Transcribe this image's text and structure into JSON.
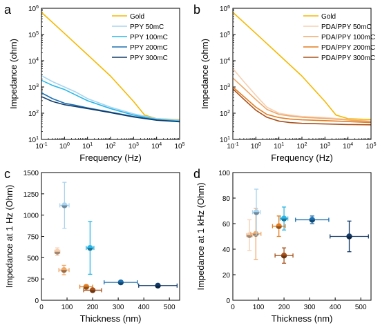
{
  "chart_data": [
    {
      "panel": "a",
      "type": "line",
      "xscale": "log",
      "yscale": "log",
      "xlim": [
        0.1,
        100000
      ],
      "ylim": [
        10,
        1000000
      ],
      "xlabel": "Frequency (Hz)",
      "ylabel": "Impedance (ohm)",
      "legend_position": "top-right",
      "xticks": [
        "10^-1",
        "10^0",
        "10^1",
        "10^2",
        "10^3",
        "10^4",
        "10^5"
      ],
      "yticks": [
        "10^1",
        "10^2",
        "10^3",
        "10^4",
        "10^5",
        "10^6"
      ],
      "series": [
        {
          "name": "Gold",
          "color": "#f5b800",
          "x": [
            0.1,
            1,
            10,
            100,
            1000,
            3000,
            10000,
            100000
          ],
          "y": [
            700000,
            110000,
            17000,
            2600,
            280,
            85,
            62,
            57
          ]
        },
        {
          "name": "PPY 50mC",
          "color": "#a8d4f0",
          "x": [
            0.1,
            0.3,
            1,
            3,
            10,
            100,
            1000,
            10000,
            100000
          ],
          "y": [
            2700,
            1600,
            1000,
            650,
            360,
            170,
            95,
            62,
            55
          ]
        },
        {
          "name": "PPY 100mC",
          "color": "#29b6e8",
          "x": [
            0.1,
            0.3,
            1,
            3,
            10,
            100,
            1000,
            10000,
            100000
          ],
          "y": [
            1800,
            1150,
            800,
            500,
            300,
            150,
            85,
            58,
            50
          ]
        },
        {
          "name": "PPY 200mC",
          "color": "#1a6fb0",
          "x": [
            0.1,
            0.3,
            1,
            3,
            10,
            100,
            1000,
            10000,
            100000
          ],
          "y": [
            600,
            360,
            240,
            200,
            160,
            110,
            75,
            55,
            48
          ]
        },
        {
          "name": "PPY 300mC",
          "color": "#123a68",
          "x": [
            0.1,
            0.3,
            1,
            3,
            10,
            100,
            1000,
            10000,
            100000
          ],
          "y": [
            430,
            280,
            210,
            180,
            150,
            105,
            72,
            54,
            47
          ]
        }
      ]
    },
    {
      "panel": "b",
      "type": "line",
      "xscale": "log",
      "yscale": "log",
      "xlim": [
        0.1,
        100000
      ],
      "ylim": [
        10,
        1000000
      ],
      "xlabel": "Frequency (Hz)",
      "ylabel": "Impedance (ohm)",
      "legend_position": "top-right",
      "xticks": [
        "10^-1",
        "10^0",
        "10^1",
        "10^2",
        "10^3",
        "10^4",
        "10^5"
      ],
      "yticks": [
        "10^1",
        "10^2",
        "10^3",
        "10^4",
        "10^5",
        "10^6"
      ],
      "series": [
        {
          "name": "Gold",
          "color": "#f5b800",
          "x": [
            0.1,
            1,
            10,
            100,
            1000,
            3000,
            10000,
            100000
          ],
          "y": [
            700000,
            110000,
            17000,
            2600,
            280,
            85,
            62,
            57
          ]
        },
        {
          "name": "PDA/PPY 50mC",
          "color": "#f6cfb0",
          "x": [
            0.1,
            0.3,
            1,
            3,
            10,
            30,
            100,
            1000,
            10000,
            100000
          ],
          "y": [
            5000,
            1600,
            480,
            170,
            100,
            85,
            75,
            68,
            58,
            50
          ]
        },
        {
          "name": "PDA/PPY 100mC",
          "color": "#eea86a",
          "x": [
            0.1,
            0.3,
            1,
            3,
            10,
            30,
            100,
            1000,
            10000,
            100000
          ],
          "y": [
            2200,
            900,
            330,
            140,
            90,
            78,
            70,
            63,
            55,
            48
          ]
        },
        {
          "name": "PDA/PPY 200mC",
          "color": "#e37c1f",
          "x": [
            0.1,
            0.3,
            1,
            3,
            10,
            30,
            100,
            1000,
            10000,
            100000
          ],
          "y": [
            1000,
            430,
            170,
            90,
            68,
            60,
            56,
            52,
            48,
            44
          ]
        },
        {
          "name": "PDA/PPY 300mC",
          "color": "#a8501a",
          "x": [
            0.1,
            0.3,
            1,
            3,
            10,
            30,
            100,
            1000,
            10000,
            100000
          ],
          "y": [
            850,
            340,
            130,
            70,
            50,
            44,
            41,
            39,
            37,
            36
          ]
        }
      ]
    },
    {
      "panel": "c",
      "type": "scatter",
      "xlim": [
        0,
        540
      ],
      "ylim": [
        0,
        1500
      ],
      "xlabel": "Thickness (nm)",
      "ylabel": "Impedance at 1 Hz (Ohm)",
      "xticks": [
        0,
        100,
        200,
        300,
        400,
        500
      ],
      "yticks": [
        0,
        250,
        500,
        750,
        1000,
        1250,
        1500
      ],
      "points": [
        {
          "x": 62,
          "y": 570,
          "xerr": 10,
          "yerr": 45,
          "color": "#f6cfb0"
        },
        {
          "x": 90,
          "y": 1115,
          "xerr": 18,
          "yerr": 270,
          "color": "#a8d4f0"
        },
        {
          "x": 88,
          "y": 355,
          "xerr": 20,
          "yerr": 55,
          "color": "#eea86a"
        },
        {
          "x": 190,
          "y": 615,
          "xerr": 15,
          "yerr": 310,
          "color": "#29b6e8"
        },
        {
          "x": 175,
          "y": 158,
          "xerr": 25,
          "yerr": 20,
          "color": "#e37c1f"
        },
        {
          "x": 200,
          "y": 118,
          "xerr": 35,
          "yerr": 18,
          "color": "#a8501a"
        },
        {
          "x": 310,
          "y": 210,
          "xerr": 65,
          "yerr": 18,
          "color": "#1a6fb0"
        },
        {
          "x": 455,
          "y": 172,
          "xerr": 75,
          "yerr": 12,
          "color": "#123a68"
        }
      ]
    },
    {
      "panel": "d",
      "type": "scatter",
      "xlim": [
        0,
        540
      ],
      "ylim": [
        0,
        100
      ],
      "xlabel": "Thickness (nm)",
      "ylabel": "Impedance at 1 kHz (Ohm)",
      "xticks": [
        0,
        100,
        200,
        300,
        400,
        500
      ],
      "yticks": [
        0,
        20,
        40,
        60,
        80,
        100
      ],
      "points": [
        {
          "x": 65,
          "y": 51,
          "xerr": 12,
          "yerr": 12,
          "color": "#f6cfb0"
        },
        {
          "x": 90,
          "y": 52,
          "xerr": 20,
          "yerr": 20,
          "color": "#eea86a"
        },
        {
          "x": 92,
          "y": 69,
          "xerr": 15,
          "yerr": 18,
          "color": "#a8d4f0"
        },
        {
          "x": 200,
          "y": 64,
          "xerr": 15,
          "yerr": 9,
          "color": "#29b6e8"
        },
        {
          "x": 180,
          "y": 58,
          "xerr": 25,
          "yerr": 8,
          "color": "#e37c1f"
        },
        {
          "x": 200,
          "y": 35,
          "xerr": 35,
          "yerr": 6,
          "color": "#a8501a"
        },
        {
          "x": 310,
          "y": 63,
          "xerr": 65,
          "yerr": 3,
          "color": "#1a6fb0"
        },
        {
          "x": 455,
          "y": 50,
          "xerr": 75,
          "yerr": 12,
          "color": "#123a68"
        }
      ]
    }
  ]
}
